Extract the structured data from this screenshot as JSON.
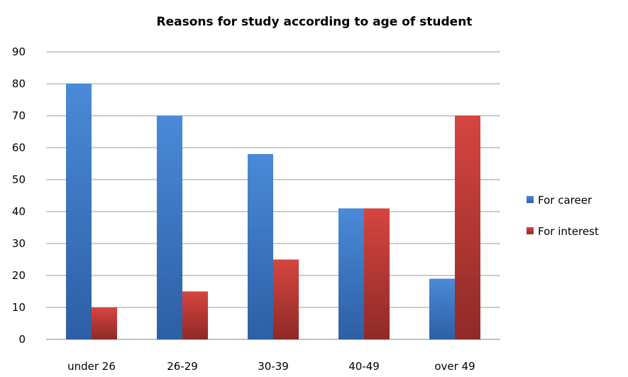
{
  "chart_data": {
    "type": "bar",
    "title": "Reasons  for study according to age of student",
    "xlabel": "",
    "ylabel": "",
    "categories": [
      "under 26",
      "26-29",
      "30-39",
      "40-49",
      "over 49"
    ],
    "series": [
      {
        "name": "For career",
        "values": [
          80,
          70,
          58,
          41,
          19
        ],
        "color": "#3a78c8"
      },
      {
        "name": "For interest",
        "values": [
          10,
          15,
          25,
          41,
          70
        ],
        "color": "#c03a36"
      }
    ],
    "ylim": [
      0,
      90
    ],
    "yticks": [
      "0",
      "10",
      "20",
      "30",
      "40",
      "50",
      "60",
      "70",
      "80",
      "90"
    ],
    "grid": true,
    "legend": "right"
  }
}
